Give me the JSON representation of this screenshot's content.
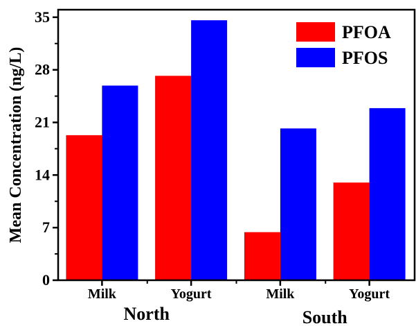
{
  "chart_data": {
    "type": "bar",
    "ylabel": "Mean Concentration (ng/L)",
    "ylim": [
      0,
      36
    ],
    "yticks": [
      0,
      7,
      14,
      21,
      28,
      35
    ],
    "groups": [
      "North",
      "South"
    ],
    "categories": [
      "Milk",
      "Yogurt",
      "Milk",
      "Yogurt"
    ],
    "category_group": [
      "North",
      "North",
      "South",
      "South"
    ],
    "series": [
      {
        "name": "PFOA",
        "color": "#ff0000",
        "values": [
          19.3,
          27.2,
          6.4,
          13.0
        ]
      },
      {
        "name": "PFOS",
        "color": "#0000ff",
        "values": [
          25.9,
          34.6,
          20.2,
          22.9
        ]
      }
    ],
    "legend_position": "top-right",
    "grid": false
  }
}
